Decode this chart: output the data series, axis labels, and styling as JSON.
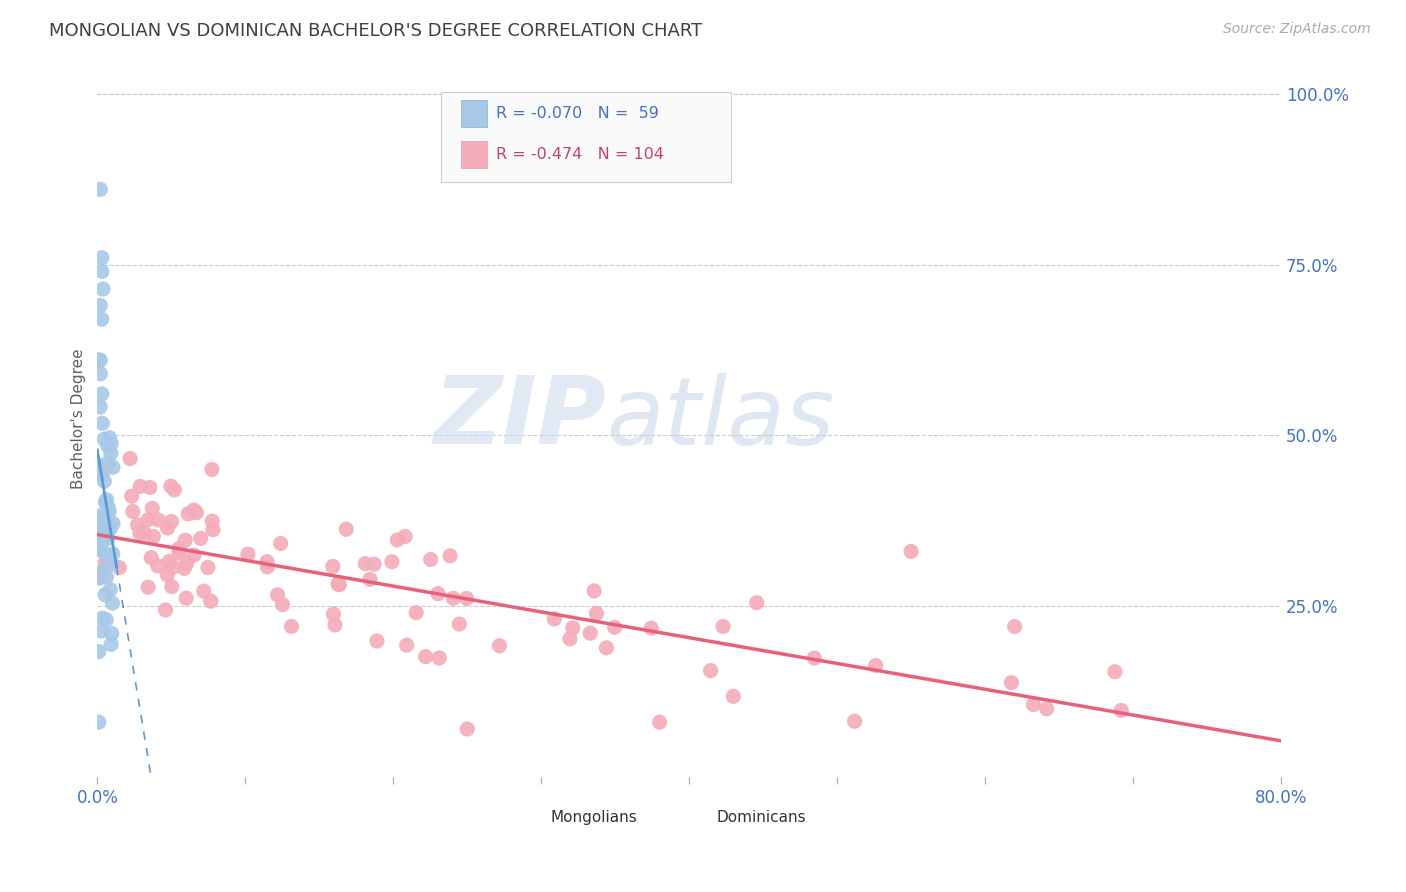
{
  "title": "MONGOLIAN VS DOMINICAN BACHELOR'S DEGREE CORRELATION CHART",
  "source": "Source: ZipAtlas.com",
  "ylabel": "Bachelor's Degree",
  "right_yticks": [
    "100.0%",
    "75.0%",
    "50.0%",
    "25.0%"
  ],
  "right_ytick_vals": [
    1.0,
    0.75,
    0.5,
    0.25
  ],
  "xlim": [
    0.0,
    0.8
  ],
  "ylim": [
    0.0,
    1.05
  ],
  "mongolian_R": "-0.070",
  "mongolian_N": "59",
  "dominican_R": "-0.474",
  "dominican_N": "104",
  "mongolian_color": "#A8C8E8",
  "dominican_color": "#F4ABBA",
  "trend_mongolian_color": "#5B9BD5",
  "trend_dominican_color": "#E8607A",
  "legend_text_color_blue": "#4472C4",
  "legend_text_color_pink": "#C0446A",
  "watermark_color": "#D0DFF0",
  "background_color": "#FFFFFF",
  "grid_color": "#CCCCCC",
  "axis_label_color": "#4472C4",
  "title_color": "#404040",
  "ylabel_color": "#606060"
}
